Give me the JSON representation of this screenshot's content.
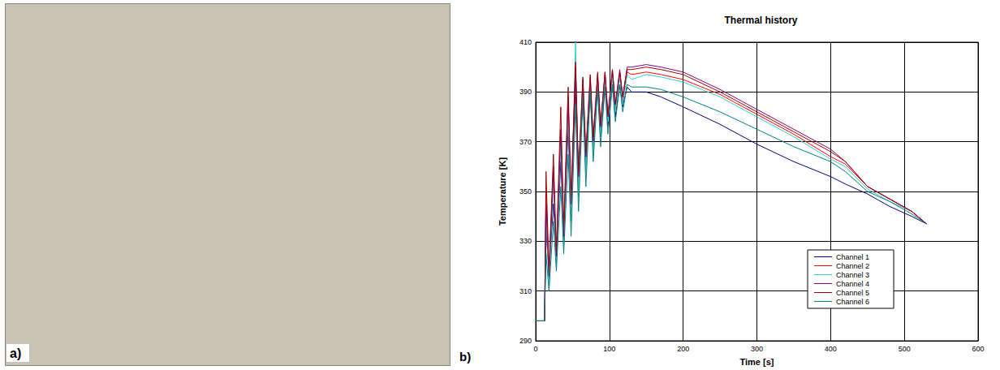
{
  "panel_labels": [
    "a)",
    "b)"
  ],
  "chart_data": {
    "type": "line",
    "title": "Thermal history",
    "x_label": "Time [s]",
    "y_label": "Temperature [K]",
    "x": [
      0,
      12,
      14,
      18,
      24,
      28,
      34,
      38,
      44,
      48,
      54,
      58,
      64,
      68,
      74,
      78,
      84,
      88,
      94,
      98,
      104,
      108,
      114,
      118,
      124,
      130,
      150,
      170,
      200,
      250,
      300,
      350,
      400,
      420,
      450,
      480,
      510,
      530
    ],
    "series": [
      {
        "name": "Channel 1",
        "color": "#000080",
        "values": [
          298,
          298,
          335,
          318,
          345,
          325,
          362,
          335,
          375,
          345,
          392,
          355,
          388,
          362,
          390,
          368,
          392,
          372,
          392,
          376,
          393,
          380,
          393,
          384,
          392,
          390,
          390,
          388,
          384,
          377,
          369,
          362,
          356,
          353,
          349,
          344,
          340,
          337
        ]
      },
      {
        "name": "Channel 2",
        "color": "#ff0000",
        "values": [
          298,
          298,
          350,
          315,
          360,
          322,
          372,
          330,
          385,
          340,
          398,
          350,
          392,
          360,
          393,
          368,
          395,
          374,
          396,
          379,
          397,
          383,
          397,
          386,
          398,
          397,
          398,
          397,
          395,
          389,
          381,
          373,
          364,
          361,
          352,
          347,
          342,
          337
        ]
      },
      {
        "name": "Channel 3",
        "color": "#33cccc",
        "values": [
          298,
          298,
          340,
          312,
          355,
          320,
          370,
          328,
          382,
          338,
          410,
          348,
          395,
          358,
          394,
          366,
          395,
          372,
          396,
          378,
          396,
          382,
          396,
          385,
          397,
          395,
          397,
          396,
          394,
          388,
          380,
          372,
          363,
          360,
          351,
          346,
          342,
          337
        ]
      },
      {
        "name": "Channel 4",
        "color": "#800080",
        "values": [
          298,
          298,
          345,
          316,
          358,
          324,
          375,
          332,
          388,
          345,
          400,
          356,
          395,
          364,
          396,
          370,
          397,
          376,
          398,
          380,
          399,
          385,
          399,
          388,
          400,
          400,
          401,
          400,
          398,
          391,
          383,
          375,
          367,
          362,
          352,
          347,
          342,
          337
        ]
      },
      {
        "name": "Channel 5",
        "color": "#a00000",
        "values": [
          298,
          298,
          358,
          318,
          365,
          326,
          384,
          336,
          392,
          348,
          402,
          358,
          396,
          366,
          397,
          372,
          398,
          377,
          398,
          381,
          399,
          385,
          398,
          388,
          399,
          399,
          400,
          399,
          397,
          390,
          382,
          374,
          366,
          362,
          352,
          347,
          342,
          337
        ]
      },
      {
        "name": "Channel 6",
        "color": "#008080",
        "values": [
          298,
          298,
          325,
          310,
          338,
          318,
          352,
          325,
          365,
          332,
          385,
          342,
          388,
          352,
          390,
          362,
          391,
          368,
          392,
          373,
          393,
          378,
          393,
          382,
          393,
          392,
          392,
          391,
          388,
          382,
          375,
          368,
          362,
          358,
          350,
          346,
          341,
          337
        ]
      }
    ],
    "xlim": [
      0,
      600
    ],
    "xticks": [
      0,
      100,
      200,
      300,
      400,
      500,
      600
    ],
    "ylim": [
      290,
      410
    ],
    "yticks": [
      290,
      310,
      330,
      350,
      370,
      390,
      410
    ],
    "grid": true,
    "legend": "lower right",
    "marker": "none",
    "line_style": "solid"
  }
}
